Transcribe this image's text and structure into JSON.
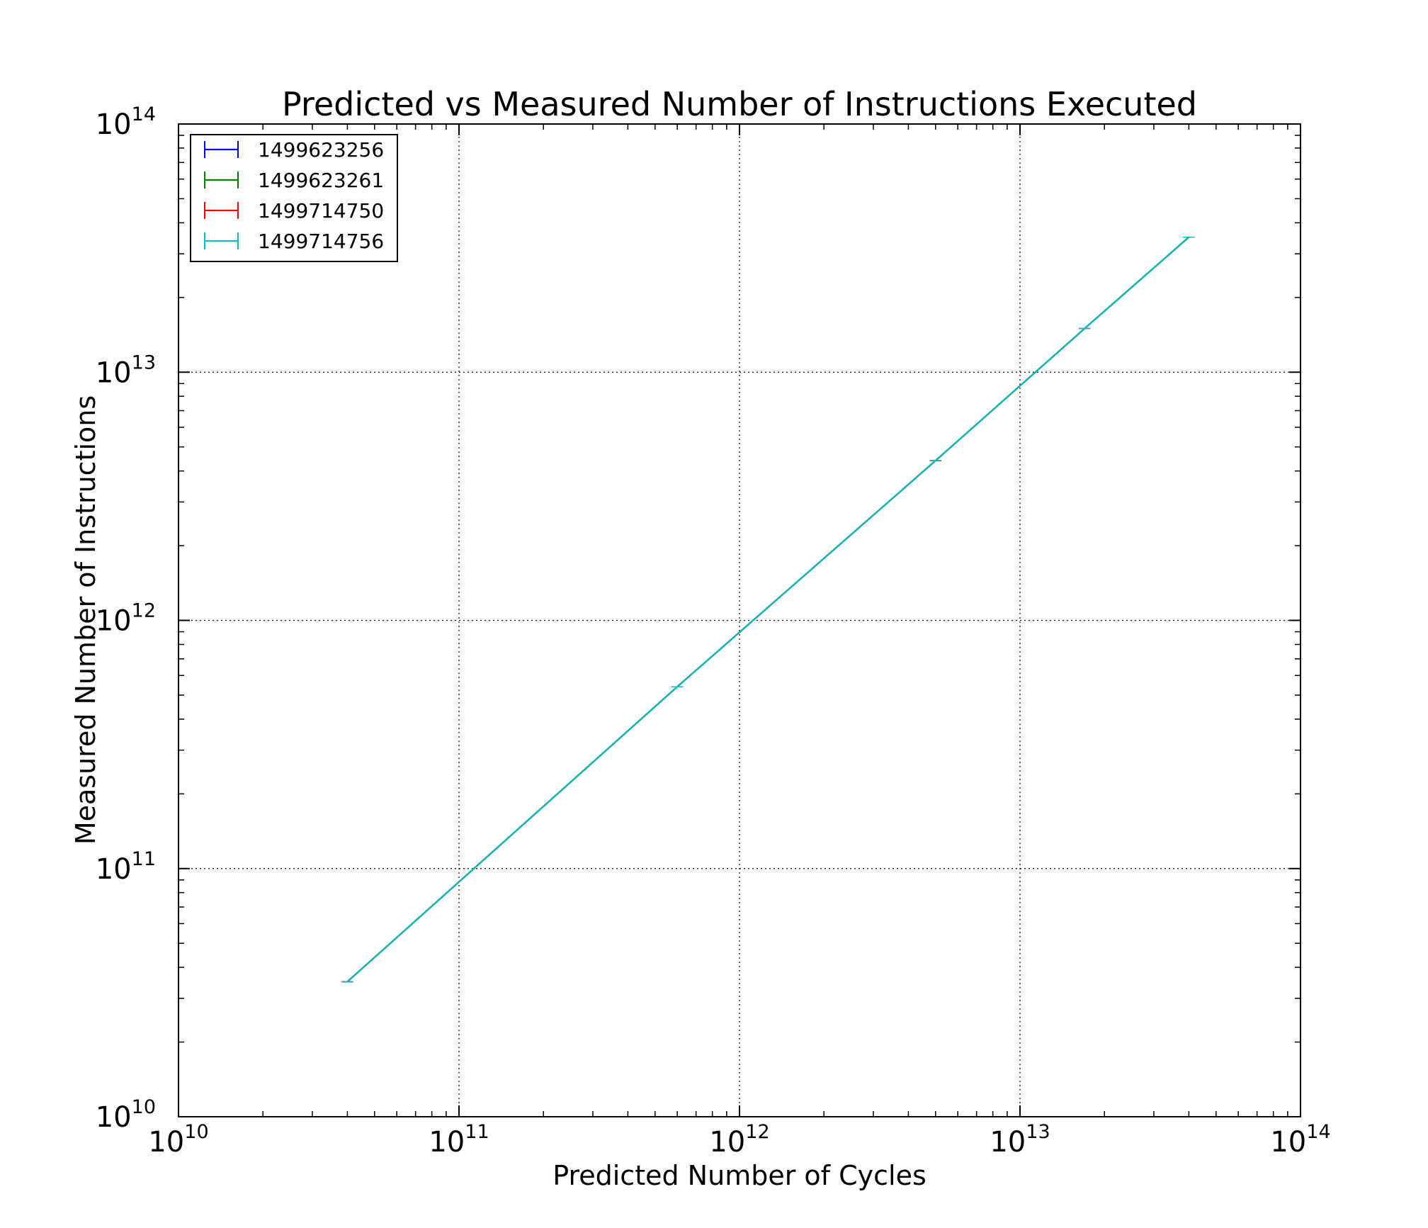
{
  "chart_data": {
    "type": "line",
    "title": "Predicted vs Measured Number of Instructions Executed",
    "xlabel": "Predicted Number of Cycles",
    "ylabel": "Measured Number of Instructions",
    "x_scale": "log",
    "y_scale": "log",
    "xlim": [
      10000000000.0,
      100000000000000.0
    ],
    "ylim": [
      10000000000.0,
      100000000000000.0
    ],
    "grid": true,
    "legend_position": "top-left",
    "x_ticks": [
      {
        "base": "10",
        "exp": "10",
        "value": 10000000000.0
      },
      {
        "base": "10",
        "exp": "11",
        "value": 100000000000.0
      },
      {
        "base": "10",
        "exp": "12",
        "value": 1000000000000.0
      },
      {
        "base": "10",
        "exp": "13",
        "value": 10000000000000.0
      },
      {
        "base": "10",
        "exp": "14",
        "value": 100000000000000.0
      }
    ],
    "y_ticks": [
      {
        "base": "10",
        "exp": "10",
        "value": 10000000000.0
      },
      {
        "base": "10",
        "exp": "11",
        "value": 100000000000.0
      },
      {
        "base": "10",
        "exp": "12",
        "value": 1000000000000.0
      },
      {
        "base": "10",
        "exp": "13",
        "value": 10000000000000.0
      },
      {
        "base": "10",
        "exp": "14",
        "value": 100000000000000.0
      }
    ],
    "series": [
      {
        "name": "1499623256",
        "color": "#0000ff",
        "x": [
          40000000000.0,
          600000000000.0,
          5000000000000.0,
          17000000000000.0,
          40000000000000.0
        ],
        "y": [
          35000000000.0,
          540000000000.0,
          4400000000000.0,
          15000000000000.0,
          35000000000000.0
        ]
      },
      {
        "name": "1499623261",
        "color": "#008000",
        "x": [
          40000000000.0,
          600000000000.0,
          5000000000000.0,
          17000000000000.0,
          40000000000000.0
        ],
        "y": [
          35000000000.0,
          540000000000.0,
          4400000000000.0,
          15000000000000.0,
          35000000000000.0
        ]
      },
      {
        "name": "1499714750",
        "color": "#ff0000",
        "x": [
          40000000000.0,
          600000000000.0,
          5000000000000.0,
          17000000000000.0,
          40000000000000.0
        ],
        "y": [
          35000000000.0,
          540000000000.0,
          4400000000000.0,
          15000000000000.0,
          35000000000000.0
        ]
      },
      {
        "name": "1499714756",
        "color": "#00bfbf",
        "x": [
          40000000000.0,
          600000000000.0,
          5000000000000.0,
          17000000000000.0,
          40000000000000.0
        ],
        "y": [
          35000000000.0,
          540000000000.0,
          4400000000000.0,
          15000000000000.0,
          35000000000000.0
        ]
      }
    ]
  }
}
